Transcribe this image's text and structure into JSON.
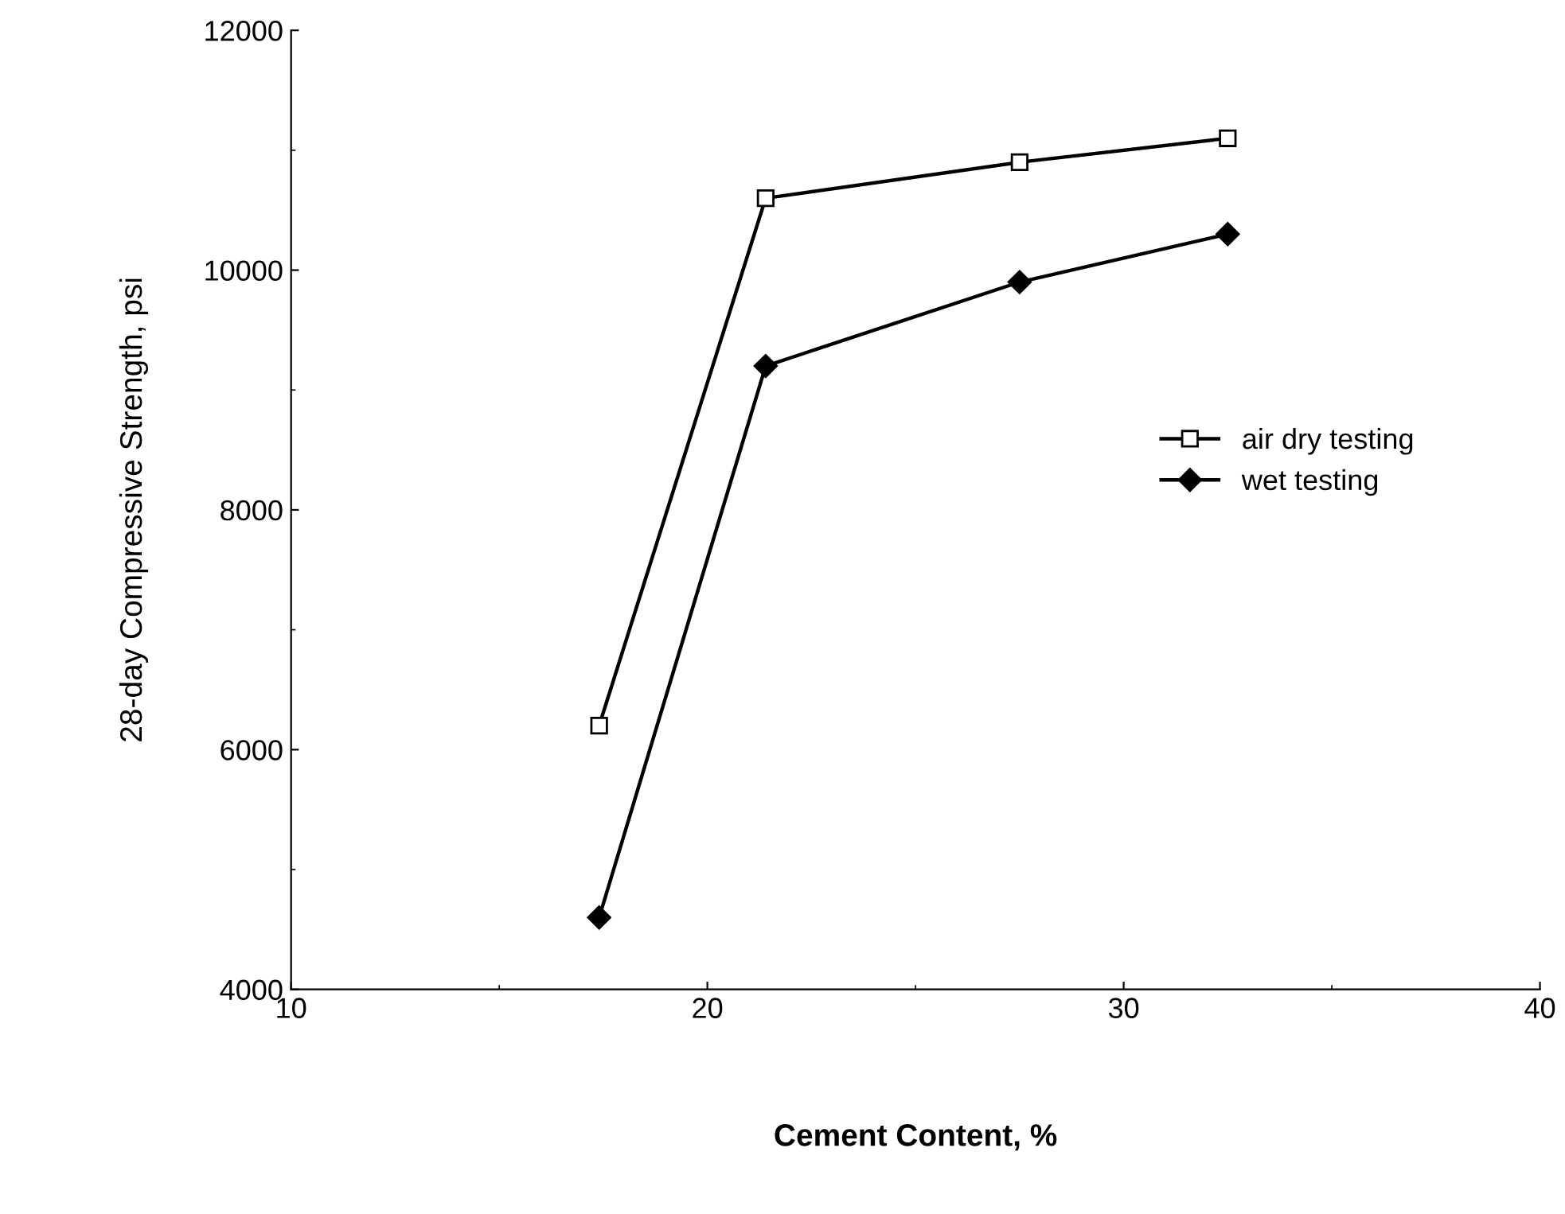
{
  "chart_data": {
    "type": "line",
    "xlabel": "Cement Content, %",
    "ylabel": "28-day Compressive Strength, psi",
    "xlim": [
      10,
      40
    ],
    "xticks": [
      10,
      20,
      30,
      40
    ],
    "ylim": [
      4000,
      12000
    ],
    "yticks": [
      4000,
      6000,
      8000,
      10000,
      12000
    ],
    "grid": false,
    "legend": "center right",
    "series": [
      {
        "name": "air dry testing",
        "color": "#000000",
        "marker": "square",
        "x": [
          17.4,
          21.4,
          27.5,
          32.5
        ],
        "values": [
          6200,
          10600,
          10900,
          11100
        ]
      },
      {
        "name": "wet testing",
        "color": "#000000",
        "marker": "diamond",
        "x": [
          17.4,
          21.4,
          27.5,
          32.5
        ],
        "values": [
          4600,
          9200,
          9900,
          10300
        ]
      }
    ]
  }
}
